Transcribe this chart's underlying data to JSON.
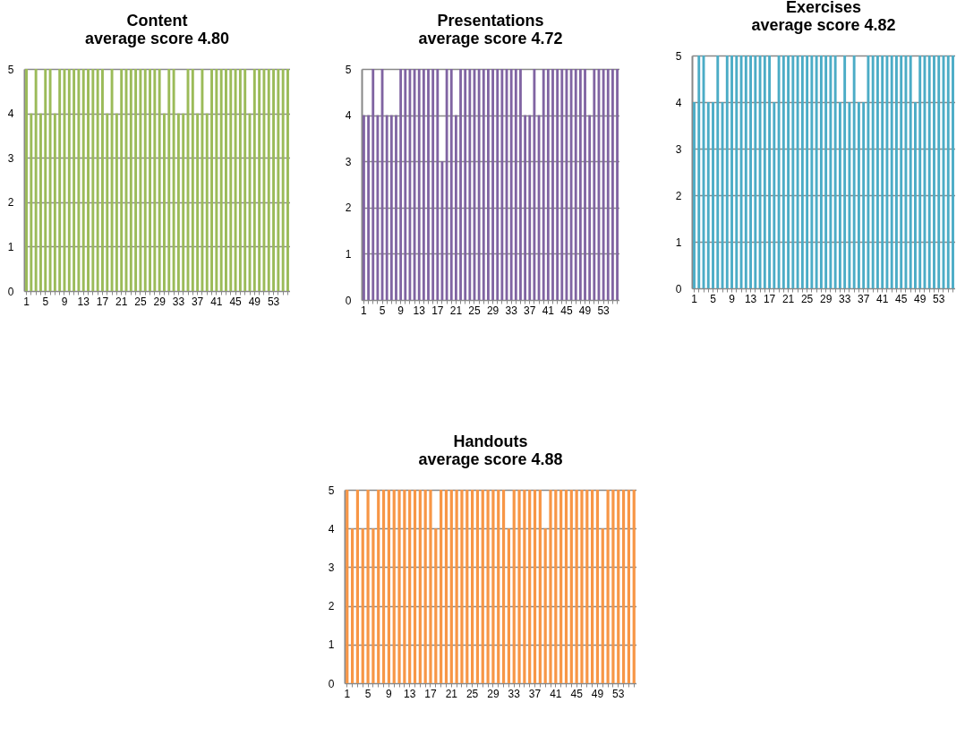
{
  "chart_data": [
    {
      "type": "bar",
      "title": "Content\naverage score 4.80",
      "categories": [
        "1",
        null,
        null,
        null,
        "5",
        null,
        null,
        null,
        "9",
        null,
        null,
        null,
        "13",
        null,
        null,
        null,
        "17",
        null,
        null,
        null,
        "21",
        null,
        null,
        null,
        "25",
        null,
        null,
        null,
        "29",
        null,
        null,
        null,
        "33",
        null,
        null,
        null,
        "37",
        null,
        null,
        null,
        "41",
        null,
        null,
        null,
        "45",
        null,
        null,
        null,
        "49",
        null,
        null,
        null,
        "53",
        null,
        null,
        null
      ],
      "values": [
        5,
        4,
        5,
        4,
        5,
        5,
        4,
        5,
        5,
        5,
        5,
        5,
        5,
        5,
        5,
        5,
        5,
        4,
        5,
        4,
        5,
        5,
        5,
        5,
        5,
        5,
        5,
        5,
        5,
        4,
        5,
        5,
        4,
        4,
        5,
        5,
        4,
        5,
        4,
        5,
        5,
        5,
        5,
        5,
        5,
        5,
        5,
        4,
        5,
        5,
        5,
        5,
        5,
        5,
        5,
        5
      ],
      "color": "#9bbb59",
      "ylim": [
        0,
        5
      ],
      "yticks": [
        0,
        1,
        2,
        3,
        4,
        5
      ],
      "grid": "y"
    },
    {
      "type": "bar",
      "title": "Presentations\naverage score 4.72",
      "categories": [
        "1",
        null,
        null,
        null,
        "5",
        null,
        null,
        null,
        "9",
        null,
        null,
        null,
        "13",
        null,
        null,
        null,
        "17",
        null,
        null,
        null,
        "21",
        null,
        null,
        null,
        "25",
        null,
        null,
        null,
        "29",
        null,
        null,
        null,
        "33",
        null,
        null,
        null,
        "37",
        null,
        null,
        null,
        "41",
        null,
        null,
        null,
        "45",
        null,
        null,
        null,
        "49",
        null,
        null,
        null,
        "53",
        null,
        null,
        null
      ],
      "values": [
        4,
        4,
        5,
        4,
        5,
        4,
        4,
        4,
        5,
        5,
        5,
        5,
        5,
        5,
        5,
        5,
        5,
        3,
        5,
        5,
        4,
        5,
        5,
        5,
        5,
        5,
        5,
        5,
        5,
        5,
        5,
        5,
        5,
        5,
        5,
        4,
        4,
        5,
        4,
        5,
        5,
        5,
        5,
        5,
        5,
        5,
        5,
        5,
        5,
        4,
        5,
        5,
        5,
        5,
        5,
        5
      ],
      "color": "#8064a2",
      "ylim": [
        0,
        5
      ],
      "yticks": [
        0,
        1,
        2,
        3,
        4,
        5
      ],
      "grid": "y"
    },
    {
      "type": "bar",
      "title": "Exercises\naverage score 4.82",
      "categories": [
        "1",
        null,
        null,
        null,
        "5",
        null,
        null,
        null,
        "9",
        null,
        null,
        null,
        "13",
        null,
        null,
        null,
        "17",
        null,
        null,
        null,
        "21",
        null,
        null,
        null,
        "25",
        null,
        null,
        null,
        "29",
        null,
        null,
        null,
        "33",
        null,
        null,
        null,
        "37",
        null,
        null,
        null,
        "41",
        null,
        null,
        null,
        "45",
        null,
        null,
        null,
        "49",
        null,
        null,
        null,
        "53",
        null,
        null,
        null
      ],
      "values": [
        4,
        5,
        5,
        4,
        4,
        5,
        4,
        5,
        5,
        5,
        5,
        5,
        5,
        5,
        5,
        5,
        5,
        4,
        5,
        5,
        5,
        5,
        5,
        5,
        5,
        5,
        5,
        5,
        5,
        5,
        5,
        4,
        5,
        4,
        5,
        4,
        4,
        5,
        5,
        5,
        5,
        5,
        5,
        5,
        5,
        5,
        5,
        4,
        5,
        5,
        5,
        5,
        5,
        5,
        5,
        5
      ],
      "color": "#4bacc6",
      "ylim": [
        0,
        5
      ],
      "yticks": [
        0,
        1,
        2,
        3,
        4,
        5
      ],
      "grid": "y"
    },
    {
      "type": "bar",
      "title": "Handouts\naverage score 4.88",
      "categories": [
        "1",
        null,
        null,
        null,
        "5",
        null,
        null,
        null,
        "9",
        null,
        null,
        null,
        "13",
        null,
        null,
        null,
        "17",
        null,
        null,
        null,
        "21",
        null,
        null,
        null,
        "25",
        null,
        null,
        null,
        "29",
        null,
        null,
        null,
        "33",
        null,
        null,
        null,
        "37",
        null,
        null,
        null,
        "41",
        null,
        null,
        null,
        "45",
        null,
        null,
        null,
        "49",
        null,
        null,
        null,
        "53",
        null,
        null,
        null
      ],
      "values": [
        5,
        4,
        5,
        4,
        5,
        4,
        5,
        5,
        5,
        5,
        5,
        5,
        5,
        5,
        5,
        5,
        5,
        4,
        5,
        5,
        5,
        5,
        5,
        5,
        5,
        5,
        5,
        5,
        5,
        5,
        5,
        4,
        5,
        5,
        5,
        5,
        5,
        5,
        4,
        5,
        5,
        5,
        5,
        5,
        5,
        5,
        5,
        5,
        5,
        4,
        5,
        5,
        5,
        5,
        5,
        5
      ],
      "color": "#f79646",
      "ylim": [
        0,
        5
      ],
      "yticks": [
        0,
        1,
        2,
        3,
        4,
        5
      ],
      "grid": "y"
    }
  ]
}
